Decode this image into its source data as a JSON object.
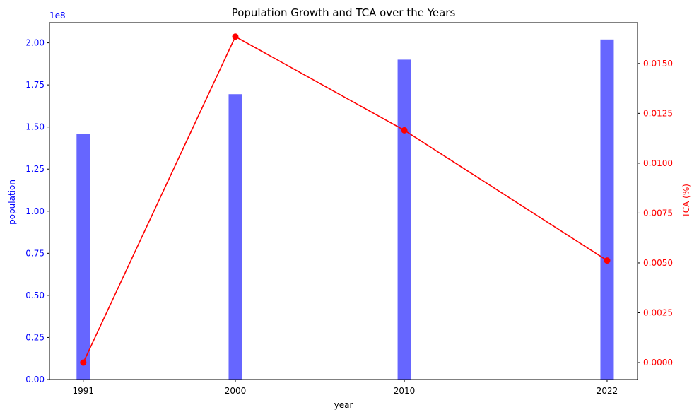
{
  "chart_data": {
    "type": "bar",
    "title": "Population Growth and TCA over the Years",
    "xlabel": "year",
    "x": [
      1991,
      2000,
      2010,
      2022
    ],
    "x_tick_labels": [
      "1991",
      "2000",
      "2010",
      "2022"
    ],
    "left_axis": {
      "label": "population",
      "offset_label": "1e8",
      "ylim": [
        0,
        2.12
      ],
      "ticks": [
        0,
        0.25,
        0.5,
        0.75,
        1.0,
        1.25,
        1.5,
        1.75,
        2.0
      ],
      "tick_labels": [
        "0.00",
        "0.25",
        "0.50",
        "0.75",
        "1.00",
        "1.25",
        "1.50",
        "1.75",
        "2.00"
      ],
      "color": "#0000ff"
    },
    "right_axis": {
      "label": "TCA (%)",
      "ylim": [
        -0.00085,
        0.01705
      ],
      "ticks": [
        0,
        0.0025,
        0.005,
        0.0075,
        0.01,
        0.0125,
        0.015
      ],
      "tick_labels": [
        "0.0000",
        "0.0025",
        "0.0050",
        "0.0075",
        "0.0100",
        "0.0125",
        "0.0150"
      ],
      "color": "#ff0000"
    },
    "series": [
      {
        "name": "population",
        "type": "bar",
        "axis": "left",
        "color": "#6666ff",
        "values": [
          1.46,
          1.695,
          1.9,
          2.02
        ]
      },
      {
        "name": "TCA (%)",
        "type": "line",
        "axis": "right",
        "color": "#ff0000",
        "values": [
          0.0,
          0.01635,
          0.01165,
          0.00512
        ]
      }
    ],
    "grid": false
  }
}
